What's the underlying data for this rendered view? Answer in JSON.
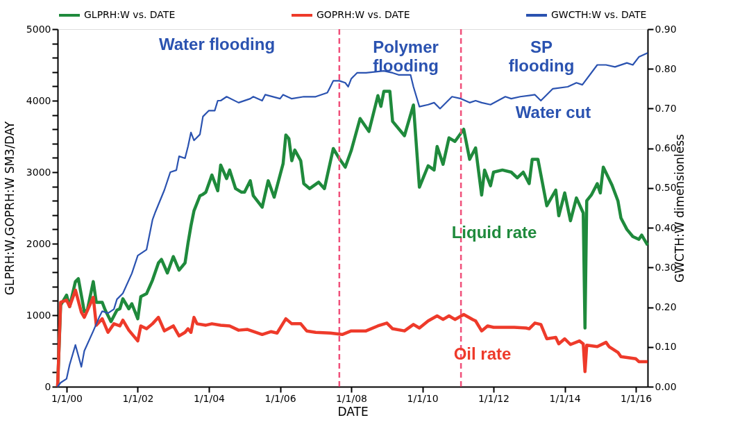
{
  "chart_data": {
    "type": "line",
    "xlabel": "DATE",
    "ylabel": "GLPRH:W,GOPRH:W   SM3/DAY",
    "y2label": "GWCTH:W   dimensionless",
    "xlim": [
      "1999-10",
      "2016-05"
    ],
    "xticks": [
      {
        "value": "2000-01-01",
        "label": "1/1/00"
      },
      {
        "value": "2002-01-01",
        "label": "1/1/02"
      },
      {
        "value": "2004-01-01",
        "label": "1/1/04"
      },
      {
        "value": "2006-01-01",
        "label": "1/1/06"
      },
      {
        "value": "2008-01-01",
        "label": "1/1/08"
      },
      {
        "value": "2010-01-01",
        "label": "1/1/10"
      },
      {
        "value": "2012-01-01",
        "label": "1/1/12"
      },
      {
        "value": "2014-01-01",
        "label": "1/1/14"
      },
      {
        "value": "2016-01-01",
        "label": "1/1/16"
      }
    ],
    "ylim": [
      0,
      5000
    ],
    "yticks": [
      0,
      {
        "value": 200,
        "label": null
      },
      {
        "value": 400,
        "label": null
      },
      {
        "value": 600,
        "label": null
      },
      {
        "value": 800,
        "label": null
      },
      1000,
      {
        "value": 1200,
        "label": null
      },
      {
        "value": 1400,
        "label": null
      },
      {
        "value": 1600,
        "label": null
      },
      {
        "value": 1800,
        "label": null
      },
      2000,
      {
        "value": 2200,
        "label": null
      },
      {
        "value": 2400,
        "label": null
      },
      {
        "value": 2600,
        "label": null
      },
      {
        "value": 2800,
        "label": null
      },
      3000,
      {
        "value": 3200,
        "label": null
      },
      {
        "value": 3400,
        "label": null
      },
      {
        "value": 3600,
        "label": null
      },
      {
        "value": 3800,
        "label": null
      },
      4000,
      {
        "value": 4200,
        "label": null
      },
      {
        "value": 4400,
        "label": null
      },
      {
        "value": 4600,
        "label": null
      },
      {
        "value": 4800,
        "label": null
      },
      5000
    ],
    "y2lim": [
      0,
      0.9
    ],
    "y2ticks": [
      {
        "value": 0,
        "label": "0.00"
      },
      {
        "value": 0.1,
        "label": "0.10"
      },
      {
        "value": 0.2,
        "label": "0.20"
      },
      {
        "value": 0.3,
        "label": "0.30"
      },
      {
        "value": 0.4,
        "label": "0.40"
      },
      {
        "value": 0.5,
        "label": "0.50"
      },
      {
        "value": 0.6,
        "label": "0.60"
      },
      {
        "value": 0.7,
        "label": "0.70"
      },
      {
        "value": 0.8,
        "label": "0.80"
      },
      {
        "value": 0.9,
        "label": "0.90"
      }
    ],
    "grid": false,
    "legend": "top",
    "marker": "none",
    "series": [
      {
        "name": "GLPRH:W  vs.  DATE",
        "color": "#1f8a3c",
        "x": [
          "1999-10",
          "1999-11",
          "2000-01",
          "2000-02",
          "2000-04",
          "2000-05",
          "2000-07",
          "2000-08",
          "2000-10",
          "2000-11",
          "2001-01",
          "2001-02",
          "2001-04",
          "2001-06",
          "2001-07",
          "2001-08",
          "2001-10",
          "2001-11",
          "2002-01",
          "2002-02",
          "2002-04",
          "2002-06",
          "2002-08",
          "2002-09",
          "2002-11",
          "2003-01",
          "2003-03",
          "2003-05",
          "2003-06",
          "2003-07",
          "2003-08",
          "2003-10",
          "2003-11",
          "2003-12",
          "2004-02",
          "2004-04",
          "2004-05",
          "2004-07",
          "2004-08",
          "2004-10",
          "2004-12",
          "2005-01",
          "2005-03",
          "2005-04",
          "2005-07",
          "2005-09",
          "2005-11",
          "2006-02",
          "2006-03",
          "2006-04",
          "2006-05",
          "2006-06",
          "2006-08",
          "2006-09",
          "2006-11",
          "2007-02",
          "2007-04",
          "2007-07",
          "2007-09",
          "2007-11",
          "2008-01",
          "2008-04",
          "2008-07",
          "2008-10",
          "2008-11",
          "2008-12",
          "2009-02",
          "2009-03",
          "2009-07",
          "2009-10",
          "2009-12",
          "2010-03",
          "2010-05",
          "2010-06",
          "2010-08",
          "2010-10",
          "2010-12",
          "2011-03",
          "2011-05",
          "2011-07",
          "2011-09",
          "2011-10",
          "2011-12",
          "2012-01",
          "2012-04",
          "2012-07",
          "2012-09",
          "2012-11",
          "2013-01",
          "2013-02",
          "2013-04",
          "2013-07",
          "2013-10",
          "2013-11",
          "2014-01",
          "2014-03",
          "2014-05",
          "2014-07-10",
          "2014-07-28",
          "2014-08-15",
          "2014-10",
          "2014-12",
          "2015-01",
          "2015-02",
          "2015-05",
          "2015-07",
          "2015-08",
          "2015-10",
          "2015-12",
          "2016-02",
          "2016-03",
          "2016-05"
        ],
        "values": [
          0,
          1140,
          1280,
          1120,
          1470,
          1510,
          1050,
          1070,
          1470,
          1180,
          1180,
          1070,
          910,
          1070,
          1090,
          1230,
          1090,
          1160,
          950,
          1260,
          1300,
          1490,
          1730,
          1780,
          1590,
          1820,
          1630,
          1730,
          2010,
          2250,
          2460,
          2670,
          2690,
          2720,
          2960,
          2740,
          3100,
          2910,
          3030,
          2770,
          2720,
          2720,
          2880,
          2670,
          2510,
          2880,
          2650,
          3120,
          3520,
          3470,
          3160,
          3310,
          3160,
          2840,
          2770,
          2860,
          2770,
          3330,
          3190,
          3070,
          3300,
          3750,
          3570,
          4070,
          3920,
          4130,
          4130,
          3710,
          3510,
          3940,
          2790,
          3090,
          3030,
          3360,
          3110,
          3480,
          3430,
          3600,
          3180,
          3340,
          2680,
          3030,
          2810,
          3000,
          3030,
          3000,
          2920,
          3000,
          2840,
          3180,
          3180,
          2530,
          2750,
          2390,
          2710,
          2320,
          2640,
          2430,
          820,
          2600,
          2680,
          2840,
          2710,
          3070,
          2820,
          2600,
          2360,
          2200,
          2100,
          2060,
          2120,
          1980
        ]
      },
      {
        "name": "GOPRH:W  vs.  DATE",
        "color": "#ee3a2a",
        "x": [
          "1999-10",
          "1999-11",
          "2000-01",
          "2000-02",
          "2000-04",
          "2000-06",
          "2000-07",
          "2000-10",
          "2000-11",
          "2001-01",
          "2001-03",
          "2001-05",
          "2001-07",
          "2001-08",
          "2001-10",
          "2002-01",
          "2002-02",
          "2002-04",
          "2002-06",
          "2002-08",
          "2002-10",
          "2003-01",
          "2003-03",
          "2003-05",
          "2003-06",
          "2003-07",
          "2003-08",
          "2003-09",
          "2003-12",
          "2004-02",
          "2004-05",
          "2004-08",
          "2004-11",
          "2005-02",
          "2005-07",
          "2005-10",
          "2005-12",
          "2006-03",
          "2006-05",
          "2006-08",
          "2006-10",
          "2007-01",
          "2007-06",
          "2007-10",
          "2008-01",
          "2008-06",
          "2008-10",
          "2009-01",
          "2009-03",
          "2009-07",
          "2009-10",
          "2009-12",
          "2010-03",
          "2010-06",
          "2010-08",
          "2010-10",
          "2010-12",
          "2011-03",
          "2011-06",
          "2011-07",
          "2011-09",
          "2011-11",
          "2012-01",
          "2012-05",
          "2012-08",
          "2012-12",
          "2013-01",
          "2013-03",
          "2013-05",
          "2013-07",
          "2013-10",
          "2013-11",
          "2014-01",
          "2014-03",
          "2014-06",
          "2014-07-10",
          "2014-07-28",
          "2014-08-15",
          "2014-12",
          "2015-03",
          "2015-04",
          "2015-07",
          "2015-08",
          "2016-01",
          "2016-02",
          "2016-05"
        ],
        "values": [
          0,
          1180,
          1210,
          1120,
          1350,
          1040,
          970,
          1250,
          860,
          950,
          760,
          880,
          850,
          930,
          790,
          640,
          850,
          810,
          880,
          970,
          780,
          850,
          710,
          760,
          810,
          760,
          970,
          880,
          860,
          880,
          860,
          850,
          790,
          800,
          730,
          770,
          750,
          950,
          880,
          880,
          780,
          760,
          750,
          730,
          780,
          780,
          850,
          890,
          810,
          780,
          870,
          820,
          920,
          990,
          940,
          990,
          940,
          1010,
          940,
          920,
          780,
          850,
          830,
          830,
          830,
          820,
          810,
          890,
          870,
          670,
          690,
          600,
          670,
          590,
          640,
          600,
          210,
          580,
          560,
          620,
          560,
          480,
          420,
          390,
          350,
          350
        ]
      },
      {
        "name": "GWCTH:W  vs.  DATE",
        "color": "#2a52b0",
        "axis": "y2",
        "x": [
          "1999-10",
          "1999-11",
          "2000-01",
          "2000-02",
          "2000-04",
          "2000-06",
          "2000-07",
          "2000-10",
          "2000-12",
          "2001-01",
          "2001-03",
          "2001-05",
          "2001-06",
          "2001-08",
          "2001-11",
          "2002-01",
          "2002-04",
          "2002-06",
          "2002-07",
          "2002-10",
          "2002-12",
          "2003-02",
          "2003-03",
          "2003-05",
          "2003-06",
          "2003-07",
          "2003-08",
          "2003-10",
          "2003-11",
          "2004-01",
          "2004-03",
          "2004-04",
          "2004-05",
          "2004-07",
          "2004-11",
          "2005-03",
          "2005-04",
          "2005-07",
          "2005-08",
          "2006-01",
          "2006-02",
          "2006-05",
          "2006-09",
          "2007-01",
          "2007-05",
          "2007-06",
          "2007-07",
          "2007-09",
          "2007-11",
          "2007-12",
          "2008-01",
          "2008-03",
          "2008-06",
          "2008-12",
          "2009-03",
          "2009-05",
          "2009-09",
          "2009-10",
          "2009-12",
          "2010-03",
          "2010-05",
          "2010-07",
          "2010-11",
          "2011-02",
          "2011-05",
          "2011-07",
          "2011-09",
          "2011-12",
          "2012-05",
          "2012-07",
          "2012-10",
          "2013-03",
          "2013-05",
          "2013-09",
          "2014-02",
          "2014-05",
          "2014-07",
          "2014-12",
          "2015-03",
          "2015-06",
          "2015-10",
          "2015-12",
          "2016-02",
          "2016-05"
        ],
        "values": [
          0.0,
          0.01,
          0.02,
          0.055,
          0.105,
          0.05,
          0.09,
          0.14,
          0.175,
          0.19,
          0.185,
          0.195,
          0.22,
          0.235,
          0.285,
          0.33,
          0.345,
          0.42,
          0.44,
          0.495,
          0.54,
          0.545,
          0.58,
          0.575,
          0.605,
          0.64,
          0.62,
          0.635,
          0.68,
          0.695,
          0.695,
          0.72,
          0.72,
          0.73,
          0.715,
          0.725,
          0.73,
          0.72,
          0.735,
          0.725,
          0.735,
          0.725,
          0.73,
          0.73,
          0.74,
          0.755,
          0.77,
          0.77,
          0.765,
          0.755,
          0.775,
          0.79,
          0.79,
          0.795,
          0.79,
          0.785,
          0.785,
          0.755,
          0.705,
          0.71,
          0.715,
          0.7,
          0.73,
          0.725,
          0.715,
          0.72,
          0.715,
          0.71,
          0.73,
          0.725,
          0.73,
          0.735,
          0.72,
          0.75,
          0.755,
          0.765,
          0.76,
          0.81,
          0.81,
          0.805,
          0.815,
          0.81,
          0.83,
          0.84
        ]
      }
    ],
    "ref_lines": [
      {
        "axis": "x",
        "value": "2007-09",
        "color": "#f0507a",
        "line_style": "dashed"
      },
      {
        "axis": "x",
        "value": "2011-02",
        "color": "#f0507a",
        "line_style": "dashed"
      }
    ],
    "annotations": [
      "Water flooding",
      "Polymer\nflooding",
      "SP\nflooding",
      "Water cut",
      "Liquid rate",
      "Oil rate"
    ]
  }
}
